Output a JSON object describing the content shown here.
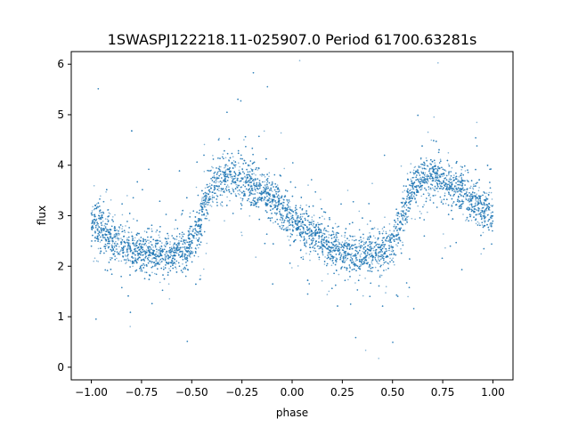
{
  "chart_data": {
    "type": "scatter",
    "title": "1SWASPJ122218.11-025907.0 Period 61700.63281s",
    "xlabel": "phase",
    "ylabel": "flux",
    "xlim": [
      -1.1,
      1.1
    ],
    "ylim": [
      -0.25,
      6.25
    ],
    "xticks": [
      "−1.00",
      "−0.75",
      "−0.50",
      "−0.25",
      "0.00",
      "0.25",
      "0.50",
      "0.75",
      "1.00"
    ],
    "yticks": [
      "0",
      "1",
      "2",
      "3",
      "4",
      "5",
      "6"
    ],
    "marker_color": "#1f77b4",
    "series": [
      {
        "phase": [
          -1.0,
          -0.9,
          -0.8,
          -0.7,
          -0.6,
          -0.55,
          -0.5,
          -0.45,
          -0.4,
          -0.3,
          -0.2,
          -0.1,
          0.0,
          0.1,
          0.2,
          0.3,
          0.4,
          0.45,
          0.5,
          0.55,
          0.6,
          0.7,
          0.8,
          0.9,
          1.0
        ],
        "flux": [
          2.9,
          2.55,
          2.35,
          2.25,
          2.25,
          2.3,
          2.45,
          3.0,
          3.6,
          3.8,
          3.6,
          3.3,
          2.95,
          2.65,
          2.35,
          2.25,
          2.25,
          2.3,
          2.45,
          3.0,
          3.6,
          3.8,
          3.6,
          3.3,
          2.95
        ]
      }
    ]
  }
}
